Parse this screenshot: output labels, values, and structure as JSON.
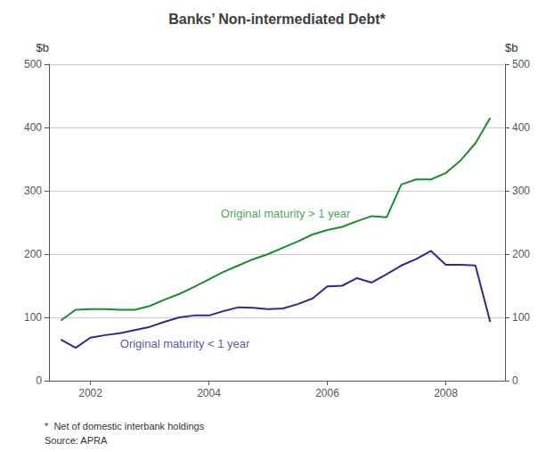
{
  "chart_data": {
    "type": "line",
    "title": "Banks’ Non-intermediated Debt*",
    "ylabel": "$b",
    "y2label": "$b",
    "notes": [
      "*  Net of domestic interbank holdings",
      "Source: APRA"
    ],
    "x": [
      2001.5,
      2001.75,
      2002.0,
      2002.25,
      2002.5,
      2002.75,
      2003.0,
      2003.25,
      2003.5,
      2003.75,
      2004.0,
      2004.25,
      2004.5,
      2004.75,
      2005.0,
      2005.25,
      2005.5,
      2005.75,
      2006.0,
      2006.25,
      2006.5,
      2006.75,
      2007.0,
      2007.25,
      2007.5,
      2007.75,
      2008.0,
      2008.25,
      2008.5,
      2008.75
    ],
    "series": [
      {
        "color": "#1a8c2e",
        "values": [
          95,
          112,
          113,
          113,
          112,
          112,
          118,
          128,
          137,
          148,
          160,
          172,
          182,
          192,
          200,
          210,
          220,
          231,
          238,
          243,
          252,
          260,
          258,
          310,
          318,
          318,
          328,
          348,
          375,
          415
        ]
      },
      {
        "color": "#2b2b8c",
        "values": [
          65,
          52,
          68,
          72,
          75,
          80,
          85,
          93,
          100,
          103,
          103,
          110,
          116,
          115,
          113,
          114,
          121,
          130,
          149,
          150,
          162,
          155,
          168,
          182,
          192,
          205,
          183,
          183,
          182,
          93
        ]
      }
    ],
    "annotations": [
      {
        "text": "Original maturity > 1 year",
        "x": 2004.2,
        "y": 255,
        "color": "#1a8c2e"
      },
      {
        "text": "Original maturity < 1 year",
        "x": 2002.5,
        "y": 68,
        "color": "#2b2b8c"
      }
    ],
    "xlim": [
      2001.3,
      2009.0
    ],
    "xticks": [
      2002,
      2004,
      2006,
      2008
    ],
    "ylim": [
      0,
      500
    ],
    "yticks": [
      0,
      100,
      200,
      300,
      400,
      500
    ],
    "y2lim": [
      0,
      500
    ],
    "y2ticks": [
      0,
      100,
      200,
      300,
      400,
      500
    ],
    "grid": true
  }
}
